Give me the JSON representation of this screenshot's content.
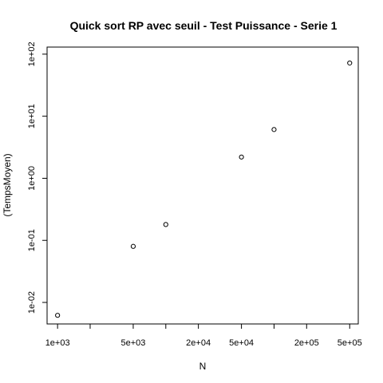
{
  "chart_data": {
    "type": "scatter",
    "title": "Quick sort RP avec seuil - Test Puissance - Serie 1",
    "xlabel": "N",
    "ylabel": "(TempsMoyen)",
    "x_scale": "log",
    "y_scale": "log",
    "xlim": [
      800,
      600000
    ],
    "ylim": [
      0.0045,
      130
    ],
    "grid": false,
    "x_ticks": [
      {
        "value": 1000,
        "label": "1e+03"
      },
      {
        "value": 2000,
        "label": ""
      },
      {
        "value": 5000,
        "label": "5e+03"
      },
      {
        "value": 10000,
        "label": ""
      },
      {
        "value": 20000,
        "label": "2e+04"
      },
      {
        "value": 50000,
        "label": "5e+04"
      },
      {
        "value": 100000,
        "label": ""
      },
      {
        "value": 200000,
        "label": "2e+05"
      },
      {
        "value": 500000,
        "label": "5e+05"
      }
    ],
    "y_ticks": [
      {
        "value": 0.01,
        "label": "1e-02"
      },
      {
        "value": 0.1,
        "label": "1e-01"
      },
      {
        "value": 1,
        "label": "1e+00"
      },
      {
        "value": 10,
        "label": "1e+01"
      },
      {
        "value": 100,
        "label": "1e+02"
      }
    ],
    "points": [
      {
        "x": 1000,
        "y": 0.0062
      },
      {
        "x": 5000,
        "y": 0.08
      },
      {
        "x": 10000,
        "y": 0.18
      },
      {
        "x": 50000,
        "y": 2.2
      },
      {
        "x": 100000,
        "y": 6.1
      },
      {
        "x": 500000,
        "y": 72
      }
    ]
  }
}
